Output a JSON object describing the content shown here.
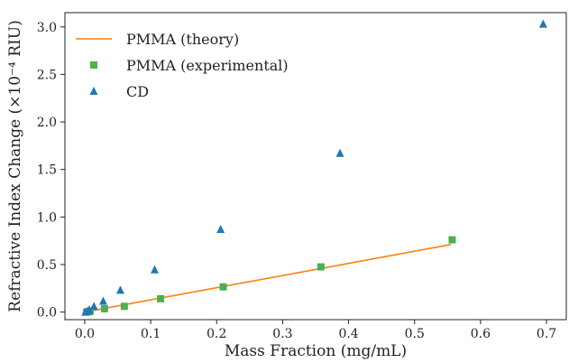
{
  "chart_data": {
    "type": "scatter",
    "xlabel": "Mass Fraction (mg/mL)",
    "ylabel": "Refractive Index Change (×10⁻⁴ RIU)",
    "xlim": [
      -0.03,
      0.73
    ],
    "ylim": [
      -0.08,
      3.15
    ],
    "xticks": [
      0.0,
      0.1,
      0.2,
      0.3,
      0.4,
      0.5,
      0.6,
      0.7
    ],
    "xtick_labels": [
      "0.0",
      "0.1",
      "0.2",
      "0.3",
      "0.4",
      "0.5",
      "0.6",
      "0.7"
    ],
    "yticks": [
      0.0,
      0.5,
      1.0,
      1.5,
      2.0,
      2.5,
      3.0
    ],
    "ytick_labels": [
      "0.0",
      "0.5",
      "1.0",
      "1.5",
      "2.0",
      "2.5",
      "3.0"
    ],
    "grid": false,
    "legend_position": "top-left",
    "series": [
      {
        "name": "PMMA (theory)",
        "kind": "line",
        "color": "#ff7f0e",
        "x": [
          0.0,
          0.555
        ],
        "y": [
          0.0,
          0.71
        ]
      },
      {
        "name": "PMMA (experimental)",
        "kind": "square",
        "color": "#4caf50",
        "x": [
          0.003,
          0.008,
          0.03,
          0.06,
          0.115,
          0.21,
          0.358,
          0.557
        ],
        "y": [
          0.0,
          0.005,
          0.035,
          0.06,
          0.14,
          0.265,
          0.475,
          0.76
        ]
      },
      {
        "name": "CD",
        "kind": "triangle",
        "color": "#1f77b4",
        "x": [
          0.001,
          0.004,
          0.007,
          0.014,
          0.028,
          0.054,
          0.106,
          0.206,
          0.387,
          0.695
        ],
        "y": [
          0.0,
          0.01,
          0.025,
          0.06,
          0.115,
          0.23,
          0.445,
          0.87,
          1.67,
          3.03
        ]
      }
    ]
  }
}
